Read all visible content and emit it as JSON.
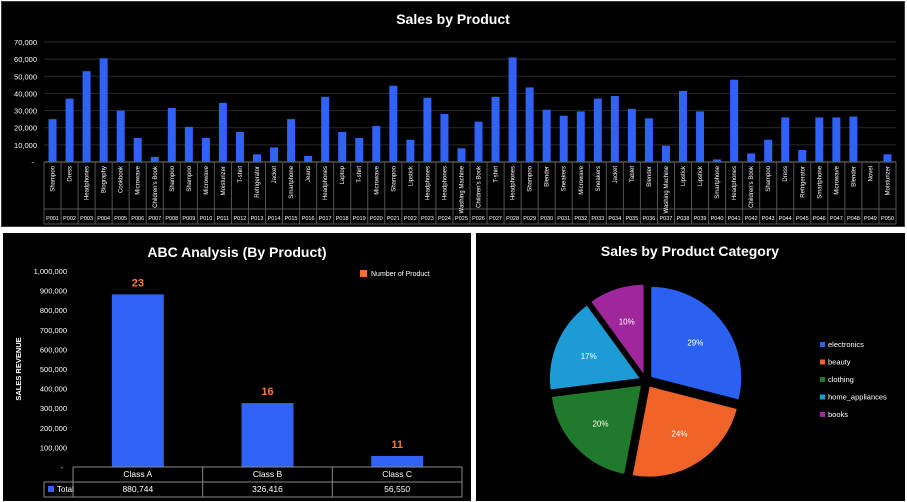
{
  "chart_data": [
    {
      "type": "bar",
      "title": "Sales by Product",
      "ylim": [
        0,
        70000
      ],
      "yticks": [
        "-",
        "10,000",
        "20,000",
        "30,000",
        "40,000",
        "50,000",
        "60,000",
        "70,000"
      ],
      "grid": true,
      "bar_color": "#2f62f5",
      "products": [
        "Shampoo",
        "Dress",
        "Headphones",
        "Biography",
        "Cookbook",
        "Microwave",
        "Children's Book",
        "Shampoo",
        "Shampoo",
        "Microwave",
        "Moisturizer",
        "T-shirt",
        "Refrigerator",
        "Jacket",
        "Smartphone",
        "Jeans",
        "Headphones",
        "Laptop",
        "T-shirt",
        "Microwave",
        "Shampoo",
        "Lipstick",
        "Headphones",
        "Headphones",
        "Washing Machine",
        "Children's Book",
        "T-shirt",
        "Headphones",
        "Shampoo",
        "Blender",
        "Sneakers",
        "Microwave",
        "Sneakers",
        "Jacket",
        "Tablet",
        "Blender",
        "Washing Machine",
        "Lipstick",
        "Lipstick",
        "Smartphone",
        "Headphones",
        "Children's Book",
        "Shampoo",
        "Dress",
        "Refrigerator",
        "Smartphone",
        "Microwave",
        "Blender",
        "Novel",
        "Moisturizer"
      ],
      "codes": [
        "P001",
        "P002",
        "P003",
        "P004",
        "P005",
        "P006",
        "P007",
        "P008",
        "P009",
        "P010",
        "P011",
        "P012",
        "P013",
        "P014",
        "P015",
        "P016",
        "P017",
        "P018",
        "P019",
        "P020",
        "P021",
        "P022",
        "P023",
        "P024",
        "P025",
        "P026",
        "P027",
        "P028",
        "P029",
        "P030",
        "P031",
        "P032",
        "P033",
        "P034",
        "P035",
        "P036",
        "P037",
        "P038",
        "P039",
        "P040",
        "P041",
        "P042",
        "P043",
        "P044",
        "P045",
        "P046",
        "P047",
        "P048",
        "P049",
        "P050"
      ],
      "values": [
        25000,
        37000,
        53000,
        60500,
        30000,
        14000,
        3000,
        31500,
        20500,
        14000,
        34500,
        17500,
        4500,
        8500,
        25000,
        3500,
        38000,
        17500,
        14000,
        21000,
        44500,
        13000,
        37500,
        28000,
        8000,
        23500,
        38000,
        61000,
        43500,
        30500,
        27000,
        29500,
        37000,
        38500,
        31000,
        25500,
        9500,
        41500,
        29500,
        1500,
        48000,
        5000,
        13000,
        26000,
        7000,
        26000,
        26000,
        26500,
        0,
        4500
      ]
    },
    {
      "type": "bar",
      "title": "ABC Analysis (By Product)",
      "ylabel": "SALES REVENUE",
      "ylim": [
        0,
        1000000
      ],
      "yticks": [
        "-",
        "100,000",
        "200,000",
        "300,000",
        "400,000",
        "500,000",
        "600,000",
        "700,000",
        "800,000",
        "900,000",
        "1,000,000"
      ],
      "legend_position": "top-right",
      "legend_label": "Number of Product",
      "legend_color": "#f0703c",
      "bar_color": "#2f62f5",
      "label_color": "#f07a3a",
      "categories": [
        "Class A",
        "Class B",
        "Class C"
      ],
      "values": [
        880744,
        326416,
        56550
      ],
      "counts": [
        "23",
        "16",
        "11"
      ],
      "table": {
        "series_label": "Total",
        "cells": [
          "880,744",
          "326,416",
          "56,550"
        ]
      }
    },
    {
      "type": "pie",
      "title": "Sales by Product Category",
      "legend_position": "right",
      "slices": [
        {
          "label": "electronics",
          "value": 29,
          "pct": "29%",
          "color": "#2a61f0"
        },
        {
          "label": "beauty",
          "value": 24,
          "pct": "24%",
          "color": "#f0642a"
        },
        {
          "label": "clothing",
          "value": 20,
          "pct": "20%",
          "color": "#1f7a2c"
        },
        {
          "label": "home_appliances",
          "value": 17,
          "pct": "17%",
          "color": "#1d9bd6"
        },
        {
          "label": "books",
          "value": 10,
          "pct": "10%",
          "color": "#a0269c"
        }
      ]
    }
  ]
}
